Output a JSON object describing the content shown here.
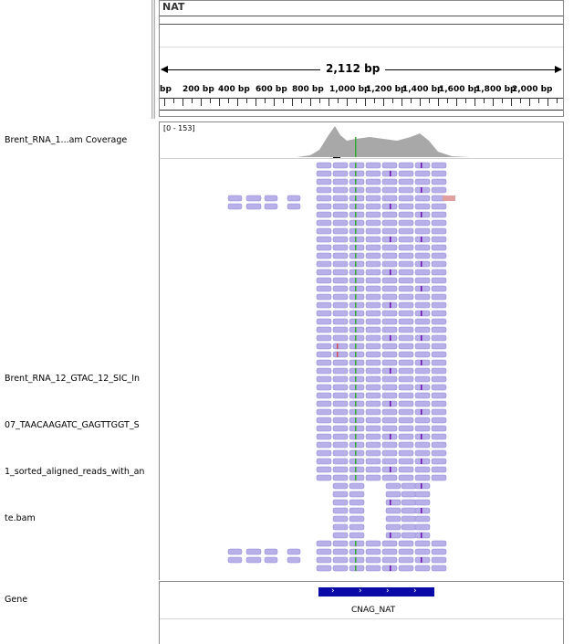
{
  "header": {
    "chromosome": "NAT",
    "span_label": "2,112 bp",
    "tick_labels": [
      "bp",
      "200 bp",
      "400 bp",
      "600 bp",
      "800 bp",
      "1,000 bp",
      "1,200 bp",
      "1,400 bp",
      "1,600 bp",
      "1,800 bp",
      "2,000 bp"
    ]
  },
  "tracks": {
    "coverage_name": "Brent_RNA_1...am Coverage",
    "coverage_range": "[0 - 153]",
    "alignment_name_lines": [
      "Brent_RNA_12_GTAC_12_SIC_In",
      "07_TAACAAGATC_GAGTTGGT_S",
      "1_sorted_aligned_reads_with_an",
      "te.bam"
    ],
    "gene_track_name": "Gene"
  },
  "gene": {
    "name": "CNAG_NAT",
    "strand": "+",
    "color": "#0a0aa8"
  },
  "colors": {
    "read_fill": "#b8b0e8",
    "read_stroke": "#8f86d6",
    "coverage_fill": "#a8a8a8",
    "insertion": "#6a0dad",
    "mismatch_green": "#33aa33",
    "mismatch_red": "#d05050"
  }
}
